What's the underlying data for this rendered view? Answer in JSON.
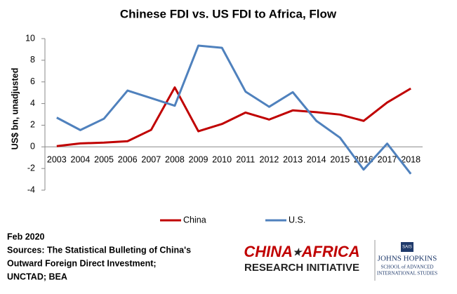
{
  "chart_data": {
    "type": "line",
    "title": "Chinese FDI vs. US FDI to Africa, Flow",
    "y_label": "US$ bn, unadjusted",
    "categories": [
      "2003",
      "2004",
      "2005",
      "2006",
      "2007",
      "2008",
      "2009",
      "2010",
      "2011",
      "2012",
      "2013",
      "2014",
      "2015",
      "2016",
      "2017",
      "2018"
    ],
    "series": [
      {
        "name": "China",
        "color": "#c00000",
        "values": [
          0.07,
          0.32,
          0.39,
          0.52,
          1.57,
          5.49,
          1.44,
          2.11,
          3.17,
          2.52,
          3.37,
          3.2,
          2.98,
          2.4,
          4.1,
          5.39
        ]
      },
      {
        "name": "U.S.",
        "color": "#4f81bd",
        "values": [
          2.7,
          1.55,
          2.6,
          5.2,
          4.5,
          3.8,
          9.35,
          9.15,
          5.1,
          3.7,
          5.05,
          2.4,
          0.85,
          -2.1,
          0.3,
          -2.5
        ]
      }
    ],
    "ylim": [
      -4,
      10
    ],
    "yticks": [
      -4,
      -2,
      0,
      2,
      4,
      6,
      8,
      10
    ],
    "grid": false,
    "legend": "bottom"
  },
  "footer": {
    "date": "Feb 2020",
    "lines": [
      "Sources: The Statistical Bulleting of China's",
      "Outward Foreign Direct Investment;",
      "UNCTAD; BEA"
    ]
  },
  "logos": {
    "cari": [
      "CHINA",
      "★",
      "AFRICA",
      "RESEARCH INITIATIVE"
    ],
    "jhu": [
      "SAIS",
      "JOHNS HOPKINS",
      "SCHOOL of ADVANCED",
      "INTERNATIONAL STUDIES"
    ]
  }
}
